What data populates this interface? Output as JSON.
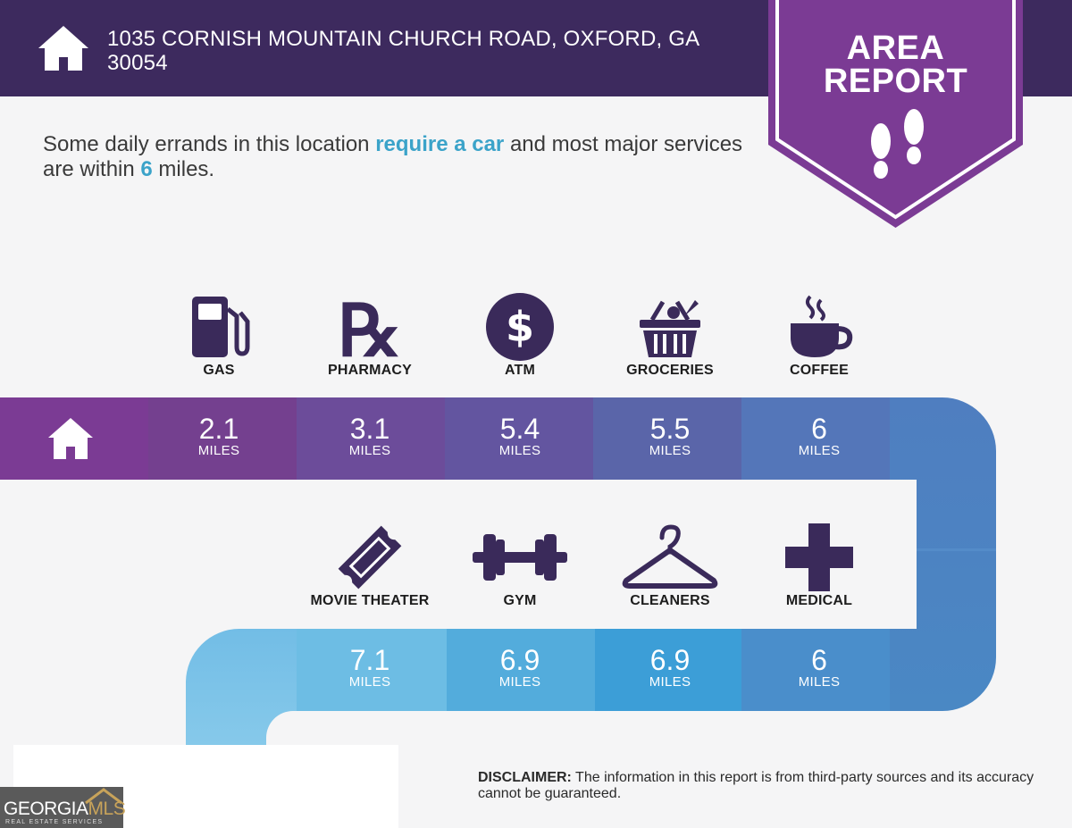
{
  "header": {
    "address": "1035 CORNISH MOUNTAIN CHURCH ROAD, OXFORD, GA 30054",
    "badge_line1": "AREA",
    "badge_line2": "REPORT"
  },
  "summary": {
    "part1": "Some daily errands in this location ",
    "highlight1": "require a car",
    "part2": " and most major services are within ",
    "highlight2": "6",
    "part3": " miles."
  },
  "row1": [
    {
      "label": "GAS",
      "icon": "gas-pump-icon",
      "distance": "2.1",
      "unit": "MILES"
    },
    {
      "label": "PHARMACY",
      "icon": "rx-icon",
      "distance": "3.1",
      "unit": "MILES"
    },
    {
      "label": "ATM",
      "icon": "dollar-icon",
      "distance": "5.4",
      "unit": "MILES"
    },
    {
      "label": "GROCERIES",
      "icon": "basket-icon",
      "distance": "5.5",
      "unit": "MILES"
    },
    {
      "label": "COFFEE",
      "icon": "coffee-cup-icon",
      "distance": "6",
      "unit": "MILES"
    }
  ],
  "row2": [
    {
      "label": "MOVIE THEATER",
      "icon": "ticket-icon",
      "distance": "7.1",
      "unit": "MILES"
    },
    {
      "label": "GYM",
      "icon": "dumbbell-icon",
      "distance": "6.9",
      "unit": "MILES"
    },
    {
      "label": "CLEANERS",
      "icon": "hanger-icon",
      "distance": "6.9",
      "unit": "MILES"
    },
    {
      "label": "MEDICAL",
      "icon": "medical-cross-icon",
      "distance": "6",
      "unit": "MILES"
    }
  ],
  "disclaimer": {
    "label": "DISCLAIMER:",
    "text": " The information in this report is from third-party sources and its accuracy cannot be guaranteed."
  },
  "logo": {
    "georgia": "GEORGIA",
    "mls": "MLS",
    "sub": "REAL ESTATE SERVICES"
  },
  "colors": {
    "header_bg": "#3d2a5e",
    "badge": "#7b3b94",
    "highlight": "#3ba3c9",
    "icon_dark": "#3a2a5a"
  }
}
